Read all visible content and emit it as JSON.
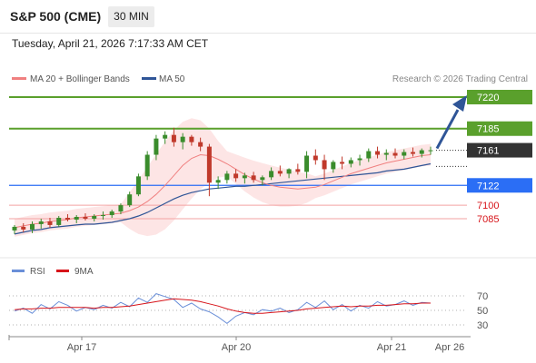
{
  "header": {
    "symbol": "S&P 500 (CME)",
    "timeframe": "30 MIN"
  },
  "datetime": "Tuesday, April 21, 2026 7:17:33 AM CET",
  "legend": {
    "ma20": "MA 20 + Bollinger Bands",
    "ma50": "MA 50",
    "copyright": "Research © 2026 Trading Central"
  },
  "colors": {
    "ma20": "#f08080",
    "ma50": "#2f5597",
    "bollinger": "#fde0e0",
    "resistance": "#5aa02c",
    "support_blue": "#2b6ef5",
    "support_red": "#d7141a",
    "current": "#333333",
    "bull": "#3a8c2c",
    "bear": "#c0392b",
    "rsi": "#6a8fd8",
    "rsi_ma": "#d7141a",
    "arrow": "#2f5597"
  },
  "chart_data": [
    {
      "type": "candlestick",
      "price_range": [
        7060,
        7235
      ],
      "levels": [
        {
          "value": 7220,
          "label": "7220",
          "kind": "resistance"
        },
        {
          "value": 7185,
          "label": "7185",
          "kind": "resistance"
        },
        {
          "value": 7161,
          "label": "7161",
          "kind": "current"
        },
        {
          "value": 7122,
          "label": "7122",
          "kind": "pivot"
        },
        {
          "value": 7100,
          "label": "7100",
          "kind": "support"
        },
        {
          "value": 7085,
          "label": "7085",
          "kind": "support"
        }
      ],
      "x_ticks": [
        "Apr 17",
        "Apr 20",
        "Apr 21",
        "Apr 26"
      ],
      "forecast_arrow": {
        "from": 7161,
        "to": 7220
      },
      "series": [
        {
          "name": "MA 20",
          "values": [
            7075,
            7077,
            7079,
            7080,
            7082,
            7083,
            7084,
            7086,
            7087,
            7088,
            7089,
            7090,
            7091,
            7094,
            7098,
            7104,
            7112,
            7122,
            7133,
            7144,
            7152,
            7156,
            7155,
            7151,
            7146,
            7140,
            7134,
            7129,
            7125,
            7122,
            7120,
            7119,
            7118,
            7119,
            7120,
            7123,
            7127,
            7131,
            7135,
            7138,
            7141,
            7144,
            7147,
            7149,
            7151,
            7153,
            7155,
            7156
          ]
        },
        {
          "name": "MA 50",
          "values": [
            7068,
            7070,
            7072,
            7073,
            7075,
            7076,
            7077,
            7078,
            7079,
            7079,
            7080,
            7081,
            7083,
            7085,
            7088,
            7092,
            7097,
            7102,
            7107,
            7111,
            7114,
            7116,
            7118,
            7119,
            7120,
            7121,
            7121,
            7122,
            7123,
            7124,
            7125,
            7126,
            7127,
            7128,
            7129,
            7130,
            7131,
            7132,
            7133,
            7134,
            7135,
            7136,
            7138,
            7139,
            7140,
            7142,
            7144,
            7146
          ]
        },
        {
          "name": "Candles",
          "ohlc": [
            [
              7072,
              7078,
              7068,
              7076
            ],
            [
              7076,
              7080,
              7070,
              7073
            ],
            [
              7073,
              7082,
              7069,
              7079
            ],
            [
              7079,
              7085,
              7074,
              7082
            ],
            [
              7082,
              7086,
              7075,
              7078
            ],
            [
              7078,
              7088,
              7076,
              7086
            ],
            [
              7086,
              7090,
              7082,
              7084
            ],
            [
              7084,
              7089,
              7080,
              7087
            ],
            [
              7087,
              7091,
              7083,
              7085
            ],
            [
              7085,
              7090,
              7082,
              7088
            ],
            [
              7088,
              7093,
              7084,
              7089
            ],
            [
              7089,
              7095,
              7086,
              7093
            ],
            [
              7093,
              7102,
              7090,
              7100
            ],
            [
              7100,
              7115,
              7098,
              7112
            ],
            [
              7112,
              7135,
              7110,
              7132
            ],
            [
              7132,
              7160,
              7128,
              7156
            ],
            [
              7156,
              7178,
              7150,
              7174
            ],
            [
              7174,
              7182,
              7168,
              7178
            ],
            [
              7178,
              7186,
              7165,
              7170
            ],
            [
              7170,
              7180,
              7162,
              7176
            ],
            [
              7176,
              7178,
              7166,
              7170
            ],
            [
              7170,
              7175,
              7160,
              7165
            ],
            [
              7165,
              7168,
              7110,
              7125
            ],
            [
              7125,
              7132,
              7118,
              7128
            ],
            [
              7128,
              7138,
              7124,
              7135
            ],
            [
              7135,
              7140,
              7126,
              7130
            ],
            [
              7130,
              7136,
              7124,
              7133
            ],
            [
              7133,
              7137,
              7125,
              7128
            ],
            [
              7128,
              7133,
              7122,
              7131
            ],
            [
              7131,
              7142,
              7128,
              7138
            ],
            [
              7138,
              7144,
              7132,
              7135
            ],
            [
              7135,
              7141,
              7130,
              7140
            ],
            [
              7140,
              7146,
              7134,
              7137
            ],
            [
              7137,
              7160,
              7130,
              7155
            ],
            [
              7155,
              7162,
              7145,
              7150
            ],
            [
              7150,
              7156,
              7128,
              7140
            ],
            [
              7140,
              7150,
              7136,
              7148
            ],
            [
              7148,
              7154,
              7140,
              7146
            ],
            [
              7146,
              7153,
              7142,
              7150
            ],
            [
              7150,
              7156,
              7144,
              7152
            ],
            [
              7152,
              7163,
              7148,
              7160
            ],
            [
              7160,
              7165,
              7152,
              7156
            ],
            [
              7156,
              7162,
              7150,
              7158
            ],
            [
              7158,
              7163,
              7152,
              7155
            ],
            [
              7155,
              7162,
              7151,
              7159
            ],
            [
              7159,
              7164,
              7154,
              7157
            ],
            [
              7157,
              7163,
              7153,
              7161
            ],
            [
              7161,
              7165,
              7156,
              7161
            ]
          ]
        }
      ]
    },
    {
      "type": "line",
      "y_ticks": [
        70,
        50,
        30
      ],
      "y_range": [
        20,
        85
      ],
      "series": [
        {
          "name": "RSI",
          "values": [
            49,
            53,
            46,
            58,
            52,
            62,
            57,
            49,
            54,
            51,
            57,
            53,
            61,
            55,
            67,
            61,
            73,
            69,
            65,
            54,
            60,
            52,
            48,
            41,
            32,
            42,
            47,
            44,
            51,
            49,
            53,
            47,
            51,
            61,
            54,
            63,
            51,
            58,
            49,
            57,
            53,
            62,
            56,
            58,
            63,
            57,
            61,
            60
          ]
        },
        {
          "name": "9MA",
          "values": [
            51,
            52,
            52,
            53,
            53,
            54,
            54,
            54,
            54,
            53,
            54,
            54,
            55,
            56,
            58,
            60,
            62,
            64,
            66,
            65,
            64,
            62,
            59,
            56,
            52,
            49,
            47,
            46,
            46,
            47,
            48,
            49,
            50,
            52,
            53,
            54,
            55,
            56,
            55,
            56,
            56,
            57,
            57,
            58,
            59,
            59,
            60,
            60
          ]
        }
      ]
    }
  ]
}
